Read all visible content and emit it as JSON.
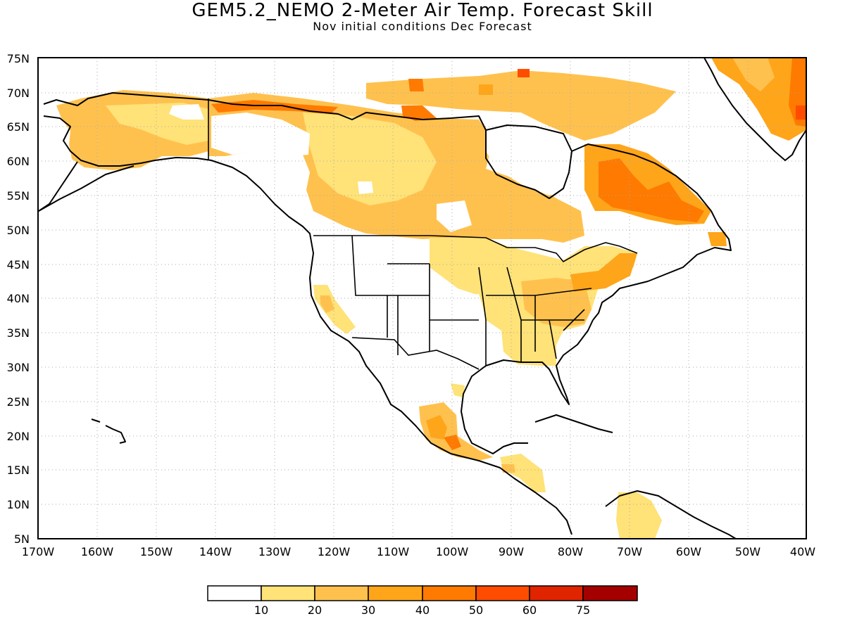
{
  "title": "GEM5.2_NEMO 2-Meter Air Temp. Forecast Skill",
  "subtitle": "Nov initial conditions  Dec Forecast",
  "map": {
    "lon_range": [
      -170,
      -40
    ],
    "lat_range": [
      5,
      75
    ],
    "lat_labels": [
      "75N",
      "70N",
      "65N",
      "60N",
      "55N",
      "50N",
      "45N",
      "40N",
      "35N",
      "30N",
      "25N",
      "20N",
      "15N",
      "10N",
      "5N"
    ],
    "lon_labels": [
      "170W",
      "160W",
      "150W",
      "140W",
      "130W",
      "120W",
      "110W",
      "100W",
      "90W",
      "80W",
      "70W",
      "60W",
      "50W",
      "40W"
    ],
    "gridlines": "dotted"
  },
  "legend": {
    "colors": [
      "#ffffff",
      "#ffe278",
      "#ffc14e",
      "#ffa51a",
      "#ff7a00",
      "#ff4c00",
      "#e02400",
      "#a40000"
    ],
    "labels": [
      "10",
      "20",
      "30",
      "40",
      "50",
      "60",
      "75"
    ]
  }
}
